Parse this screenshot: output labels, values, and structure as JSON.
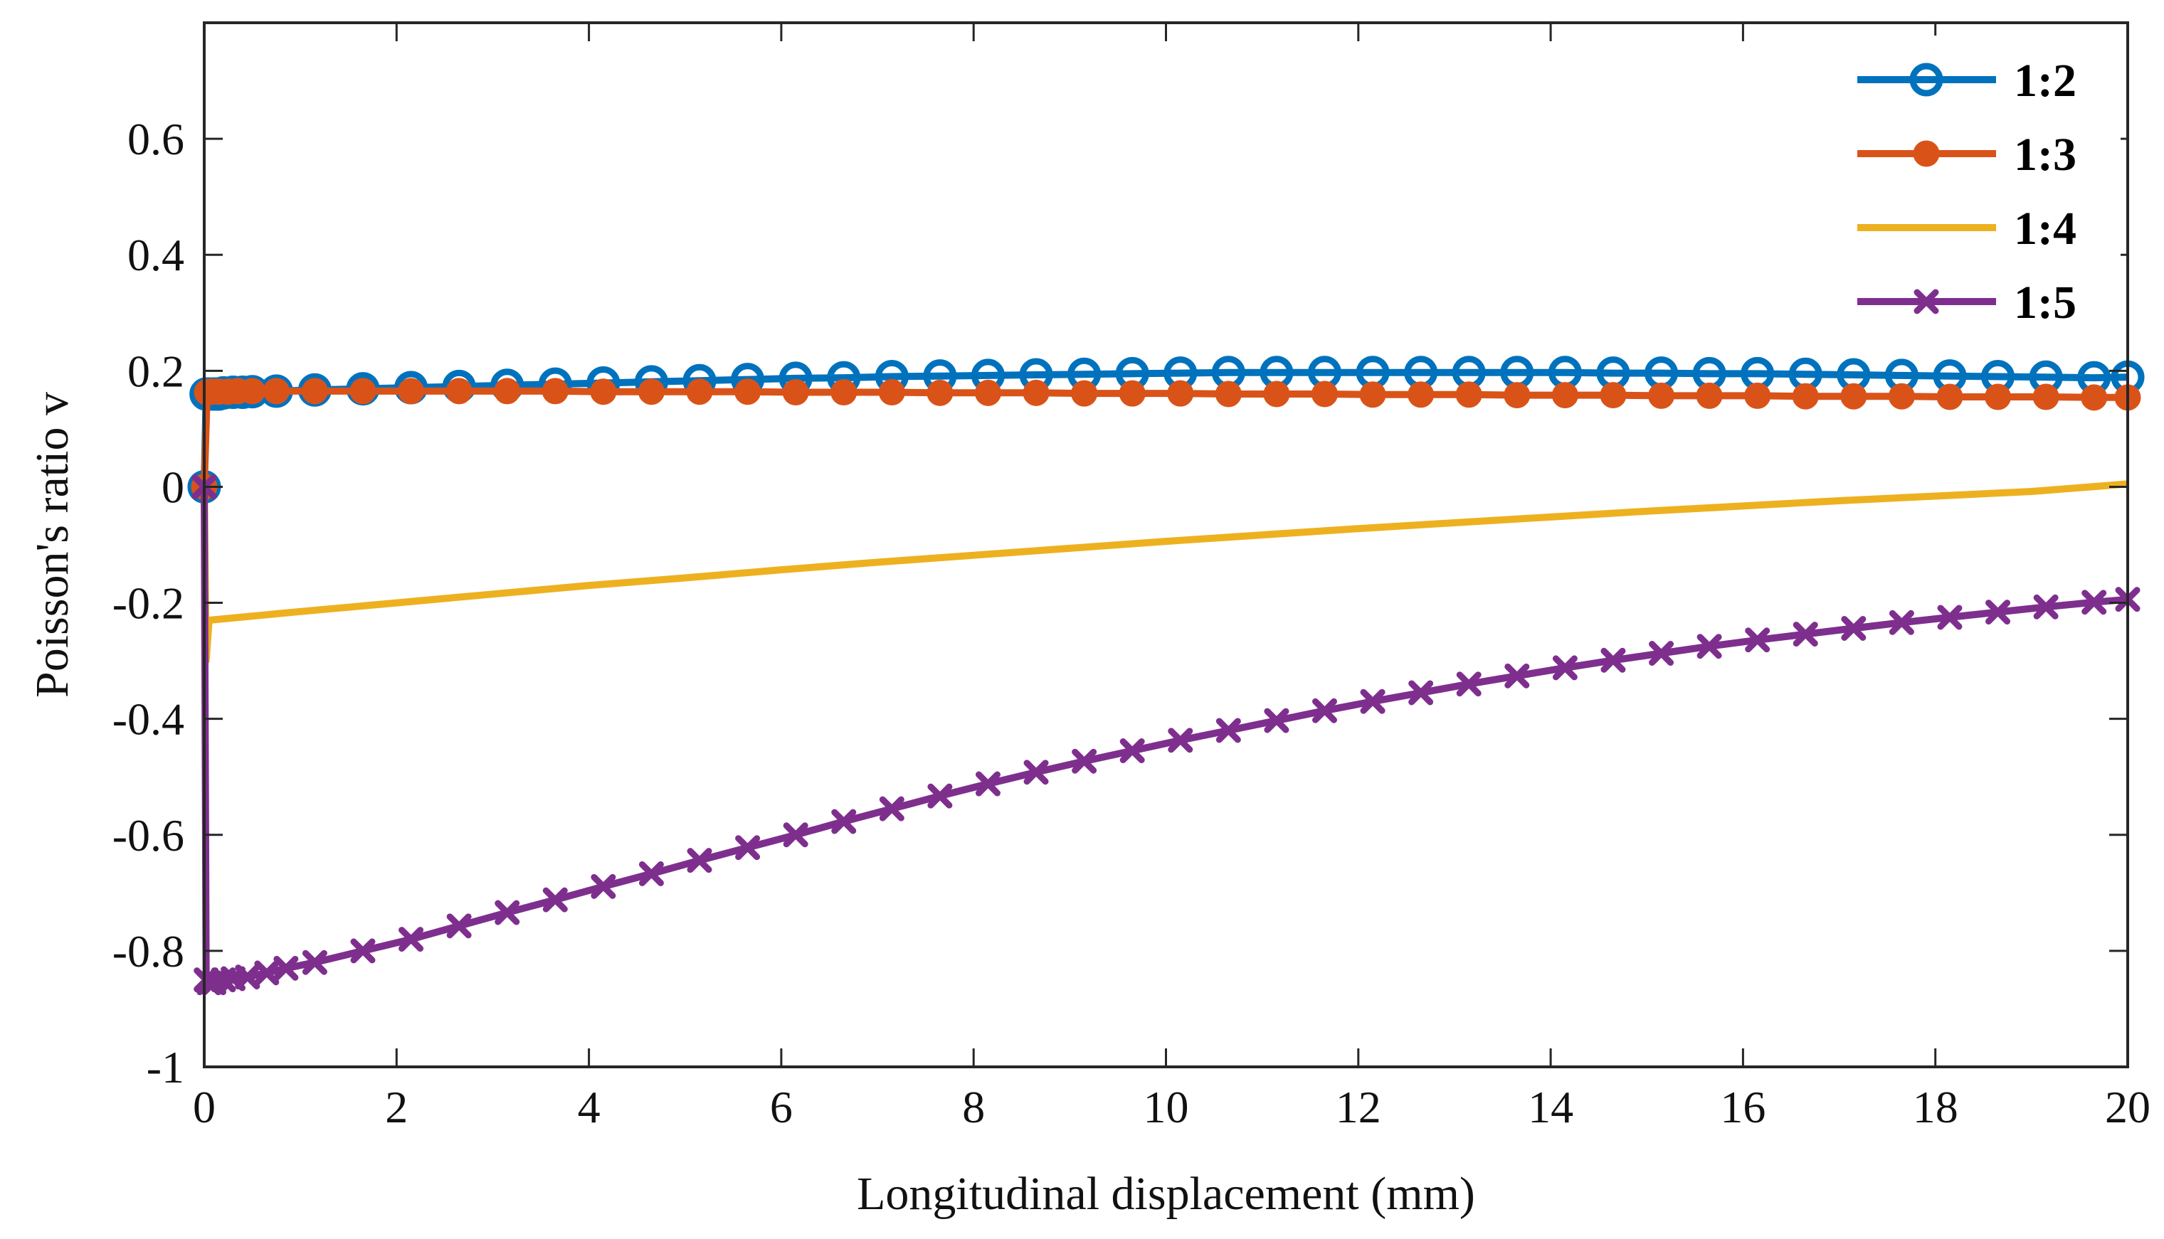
{
  "chart_data": {
    "type": "line",
    "title": "",
    "xlabel": "Longitudinal displacement  (mm)",
    "ylabel": "Poisson's ratio v",
    "xlim": [
      0,
      20
    ],
    "ylim": [
      -1,
      0.8
    ],
    "xticks": [
      0,
      2,
      4,
      6,
      8,
      10,
      12,
      14,
      16,
      18,
      20
    ],
    "xtick_labels": [
      "0",
      "2",
      "4",
      "6",
      "8",
      "10",
      "12",
      "14",
      "16",
      "18",
      "20"
    ],
    "yticks": [
      -1,
      -0.8,
      -0.6,
      -0.4,
      -0.2,
      0,
      0.2,
      0.4,
      0.6
    ],
    "ytick_labels": [
      "-1",
      "-0.8",
      "-0.6",
      "-0.4",
      "-0.2",
      "0",
      "0.2",
      "0.4",
      "0.6"
    ],
    "grid": false,
    "legend_position": "top-right",
    "series": [
      {
        "name": "1:2",
        "color": "#0072BD",
        "marker": "open-circle",
        "x": [
          0,
          0.02,
          0.05,
          0.1,
          0.15,
          0.2,
          0.3,
          0.4,
          0.5,
          0.75,
          1.15,
          1.65,
          2.15,
          2.65,
          3.15,
          3.65,
          4.15,
          4.65,
          5.15,
          5.65,
          6.15,
          6.65,
          7.15,
          7.65,
          8.15,
          8.65,
          9.15,
          9.65,
          10.15,
          10.65,
          11.15,
          11.65,
          12.15,
          12.65,
          13.15,
          13.65,
          14.15,
          14.65,
          15.15,
          15.65,
          16.15,
          16.65,
          17.15,
          17.65,
          18.15,
          18.65,
          19.15,
          19.65,
          20.0
        ],
        "y": [
          0,
          0.16,
          0.16,
          0.16,
          0.16,
          0.162,
          0.163,
          0.163,
          0.164,
          0.165,
          0.167,
          0.169,
          0.171,
          0.173,
          0.175,
          0.177,
          0.179,
          0.181,
          0.183,
          0.185,
          0.187,
          0.188,
          0.19,
          0.191,
          0.192,
          0.193,
          0.194,
          0.195,
          0.196,
          0.197,
          0.197,
          0.197,
          0.197,
          0.197,
          0.197,
          0.197,
          0.197,
          0.196,
          0.196,
          0.195,
          0.195,
          0.194,
          0.193,
          0.192,
          0.191,
          0.19,
          0.189,
          0.188,
          0.189
        ]
      },
      {
        "name": "1:3",
        "color": "#D95319",
        "marker": "filled-circle",
        "x": [
          0,
          0.03,
          0.08,
          0.15,
          0.25,
          0.35,
          0.5,
          0.75,
          1.15,
          1.65,
          2.15,
          2.65,
          3.15,
          3.65,
          4.15,
          4.65,
          5.15,
          5.65,
          6.15,
          6.65,
          7.15,
          7.65,
          8.15,
          8.65,
          9.15,
          9.65,
          10.15,
          10.65,
          11.15,
          11.65,
          12.15,
          12.65,
          13.15,
          13.65,
          14.15,
          14.65,
          15.15,
          15.65,
          16.15,
          16.65,
          17.15,
          17.65,
          18.15,
          18.65,
          19.15,
          19.65,
          20.0
        ],
        "y": [
          0,
          0.163,
          0.164,
          0.164,
          0.164,
          0.165,
          0.165,
          0.165,
          0.165,
          0.165,
          0.165,
          0.165,
          0.165,
          0.165,
          0.164,
          0.164,
          0.164,
          0.164,
          0.163,
          0.163,
          0.163,
          0.162,
          0.162,
          0.162,
          0.161,
          0.161,
          0.161,
          0.16,
          0.16,
          0.16,
          0.159,
          0.159,
          0.159,
          0.158,
          0.158,
          0.158,
          0.157,
          0.157,
          0.157,
          0.156,
          0.156,
          0.156,
          0.155,
          0.155,
          0.155,
          0.154,
          0.154
        ]
      },
      {
        "name": "1:4",
        "color": "#EDB120",
        "marker": "none",
        "x": [
          0,
          0.02,
          0.05,
          1,
          2,
          3,
          4,
          5,
          6,
          7,
          8,
          9,
          10,
          11,
          12,
          13,
          14,
          15,
          16,
          17,
          18,
          19,
          20
        ],
        "y": [
          0,
          -0.3,
          -0.23,
          -0.215,
          -0.2,
          -0.185,
          -0.17,
          -0.157,
          -0.143,
          -0.13,
          -0.118,
          -0.106,
          -0.094,
          -0.083,
          -0.072,
          -0.062,
          -0.052,
          -0.042,
          -0.033,
          -0.024,
          -0.016,
          -0.008,
          0.005
        ]
      },
      {
        "name": "1:5",
        "color": "#7E2F8E",
        "marker": "x-cross",
        "x": [
          0,
          0.02,
          0.05,
          0.1,
          0.2,
          0.3,
          0.45,
          0.65,
          0.85,
          1.15,
          1.65,
          2.15,
          2.65,
          3.15,
          3.65,
          4.15,
          4.65,
          5.15,
          5.65,
          6.15,
          6.65,
          7.15,
          7.65,
          8.15,
          8.65,
          9.15,
          9.65,
          10.15,
          10.65,
          11.15,
          11.65,
          12.15,
          12.65,
          13.15,
          13.65,
          14.15,
          14.65,
          15.15,
          15.65,
          16.15,
          16.65,
          17.15,
          17.65,
          18.15,
          18.65,
          19.15,
          19.65,
          20.0
        ],
        "y": [
          0,
          -0.85,
          -0.855,
          -0.855,
          -0.85,
          -0.848,
          -0.845,
          -0.838,
          -0.83,
          -0.82,
          -0.8,
          -0.78,
          -0.757,
          -0.734,
          -0.712,
          -0.689,
          -0.667,
          -0.644,
          -0.622,
          -0.6,
          -0.577,
          -0.555,
          -0.533,
          -0.512,
          -0.492,
          -0.473,
          -0.455,
          -0.437,
          -0.42,
          -0.403,
          -0.386,
          -0.37,
          -0.355,
          -0.34,
          -0.326,
          -0.312,
          -0.299,
          -0.287,
          -0.275,
          -0.264,
          -0.254,
          -0.244,
          -0.234,
          -0.225,
          -0.216,
          -0.207,
          -0.199,
          -0.194
        ]
      }
    ]
  }
}
